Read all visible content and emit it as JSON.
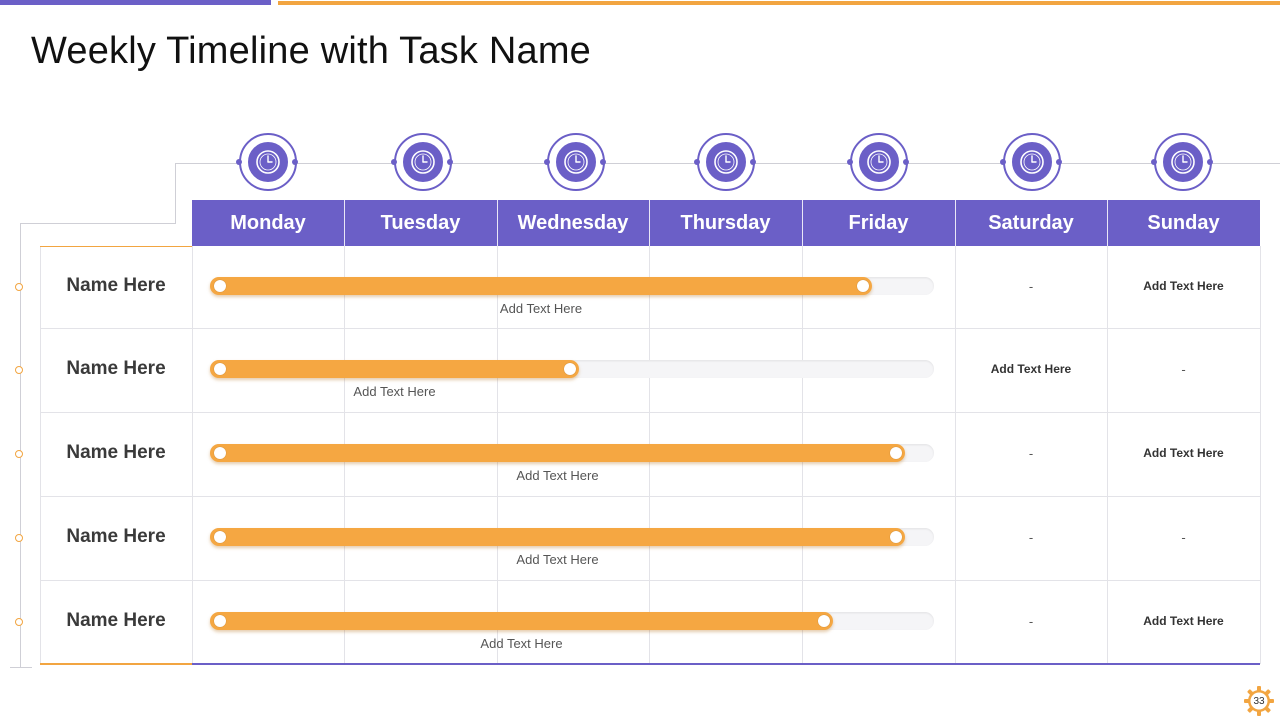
{
  "title": "Weekly Timeline with Task Name",
  "colors": {
    "purple": "#6b5fc7",
    "orange": "#f2a541",
    "bar_orange": "#f5a742"
  },
  "days": [
    "Monday",
    "Tuesday",
    "Wednesday",
    "Thursday",
    "Friday",
    "Saturday",
    "Sunday"
  ],
  "rows": [
    {
      "name": "Name Here",
      "progress": 0.915,
      "bar_label": "Add Text Here",
      "saturday": "-",
      "sunday": "Add Text Here"
    },
    {
      "name": "Name Here",
      "progress": 0.51,
      "bar_label": "Add Text Here",
      "saturday": "Add Text Here",
      "sunday": "-"
    },
    {
      "name": "Name Here",
      "progress": 0.96,
      "bar_label": "Add Text Here",
      "saturday": "-",
      "sunday": "Add Text Here"
    },
    {
      "name": "Name Here",
      "progress": 0.96,
      "bar_label": "Add Text Here",
      "saturday": "-",
      "sunday": "-"
    },
    {
      "name": "Name Here",
      "progress": 0.86,
      "bar_label": "Add Text Here",
      "saturday": "-",
      "sunday": "Add Text Here"
    }
  ],
  "icons": {
    "day_icon": "clock-icon",
    "footer_icon": "gear-icon"
  },
  "page_number": "33"
}
